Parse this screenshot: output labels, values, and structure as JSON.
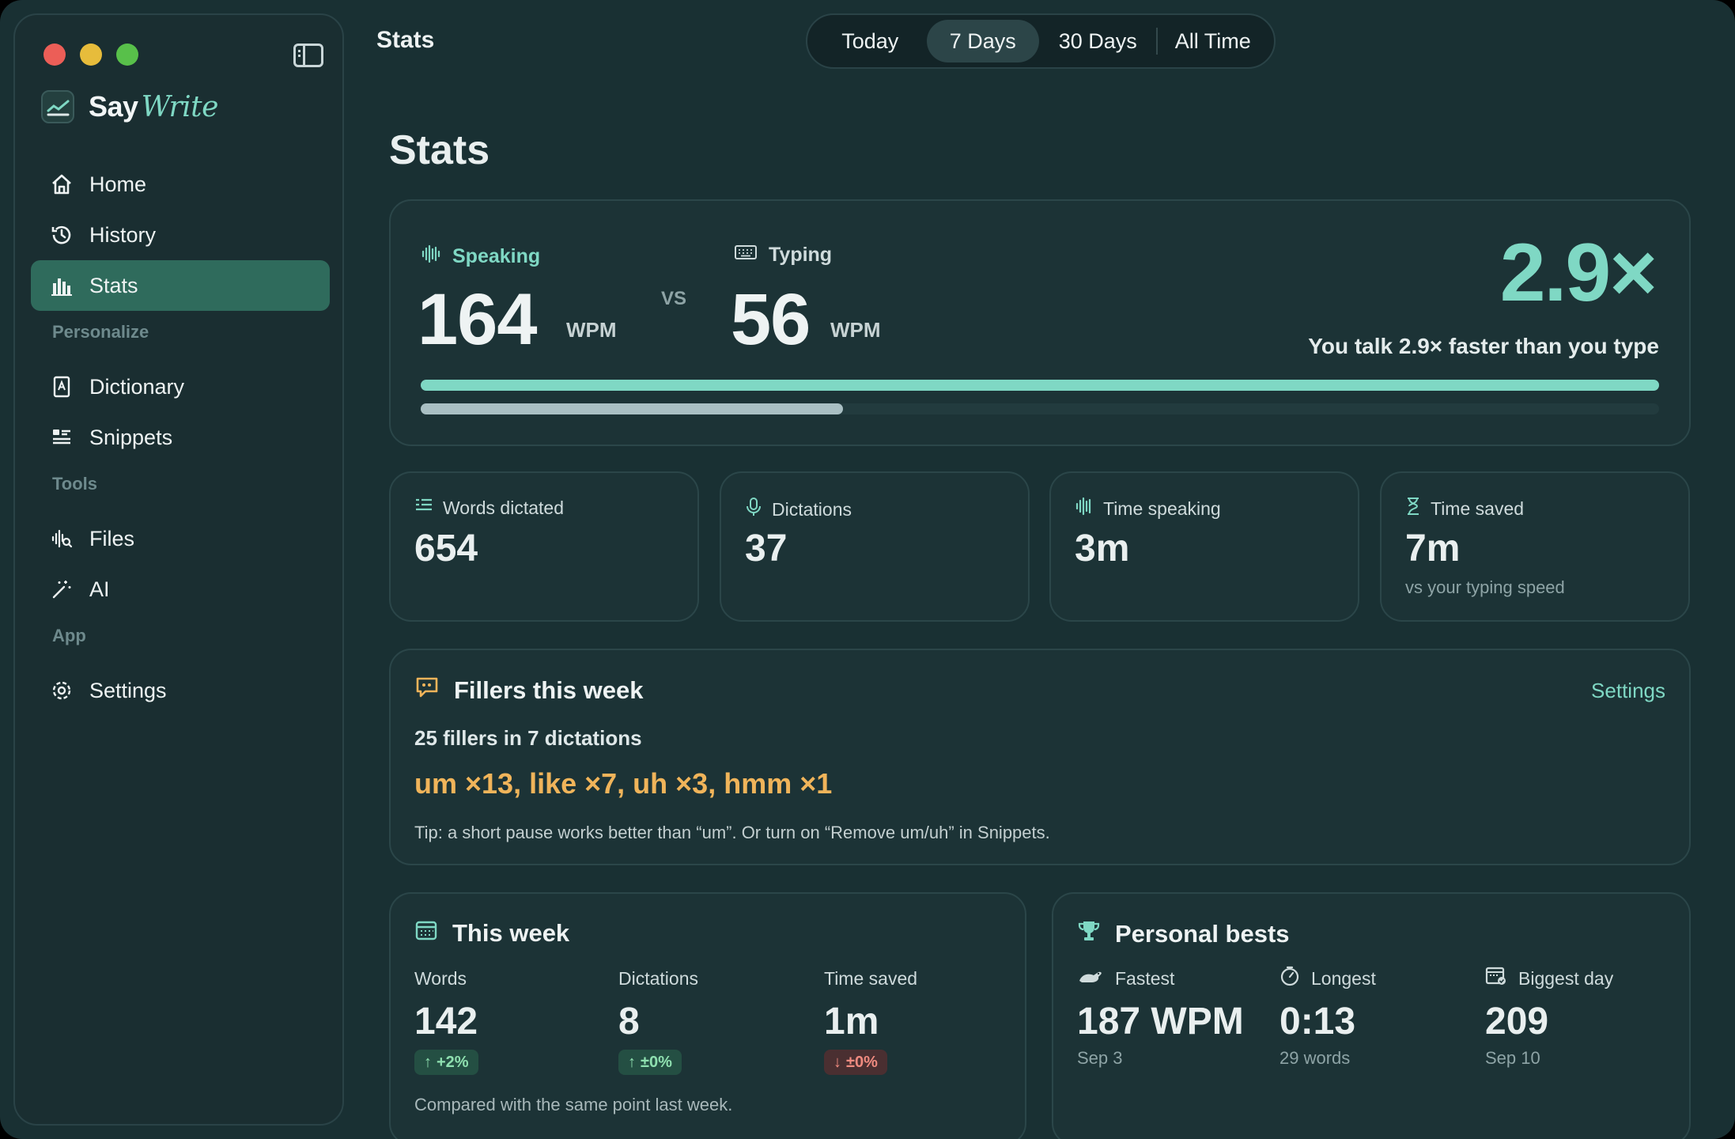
{
  "colors": {
    "accent": "#7fd8c4",
    "filler": "#f0b45a",
    "active_nav": "#2f6b5c",
    "typing_bar": "#a9bfc3"
  },
  "sidebar": {
    "brand": {
      "say": "Say",
      "write": "Write"
    },
    "items_main": [
      {
        "label": "Home",
        "icon": "home-icon"
      },
      {
        "label": "History",
        "icon": "history-icon"
      },
      {
        "label": "Stats",
        "icon": "stats-icon",
        "active": true
      }
    ],
    "personalize_label": "Personalize",
    "items_personalize": [
      {
        "label": "Dictionary",
        "icon": "dictionary-icon"
      },
      {
        "label": "Snippets",
        "icon": "snippets-icon"
      }
    ],
    "tools_label": "Tools",
    "items_tools": [
      {
        "label": "Files",
        "icon": "files-icon"
      },
      {
        "label": "AI",
        "icon": "ai-icon"
      }
    ],
    "app_label": "App",
    "items_app": [
      {
        "label": "Settings",
        "icon": "settings-icon"
      }
    ]
  },
  "topbar": {
    "title": "Stats",
    "ranges": [
      "Today",
      "7 Days",
      "30 Days",
      "All Time"
    ],
    "selected_range": "7 Days"
  },
  "page": {
    "title": "Stats"
  },
  "hero": {
    "speaking_label": "Speaking",
    "speaking_wpm": "164",
    "wpm_unit": "WPM",
    "vs": "VS",
    "typing_label": "Typing",
    "typing_wpm": "56",
    "ratio": "2.9×",
    "ratio_text": "You talk 2.9× faster than you type",
    "speaking_fraction": 1.0,
    "typing_fraction": 0.341
  },
  "stats": [
    {
      "label": "Words dictated",
      "value": "654",
      "icon": "lines-icon"
    },
    {
      "label": "Dictations",
      "value": "37",
      "icon": "microphone-icon"
    },
    {
      "label": "Time speaking",
      "value": "3m",
      "icon": "waveform-icon"
    },
    {
      "label": "Time saved",
      "value": "7m",
      "sub": "vs your typing speed",
      "icon": "hourglass-icon"
    }
  ],
  "fillers": {
    "title": "Fillers this week",
    "settings": "Settings",
    "count": "25 fillers in 7 dictations",
    "list": "um ×13, like ×7, uh ×3, hmm ×1",
    "tip": "Tip: a short pause works better than “um”. Or turn on “Remove um/uh” in Snippets."
  },
  "week": {
    "title": "This week",
    "columns": [
      {
        "label": "Words",
        "value": "142",
        "delta": "+2%",
        "direction": "up"
      },
      {
        "label": "Dictations",
        "value": "8",
        "delta": "±0%",
        "direction": "up"
      },
      {
        "label": "Time saved",
        "value": "1m",
        "delta": "±0%",
        "direction": "down"
      }
    ],
    "footnote": "Compared with the same point last week."
  },
  "bests": {
    "title": "Personal bests",
    "columns": [
      {
        "label": "Fastest",
        "value": "187 WPM",
        "sub": "Sep 3",
        "icon": "rabbit-icon"
      },
      {
        "label": "Longest",
        "value": "0:13",
        "sub": "29 words",
        "icon": "timer-icon"
      },
      {
        "label": "Biggest day",
        "value": "209",
        "sub": "Sep 10",
        "icon": "calendar-check-icon"
      }
    ]
  }
}
